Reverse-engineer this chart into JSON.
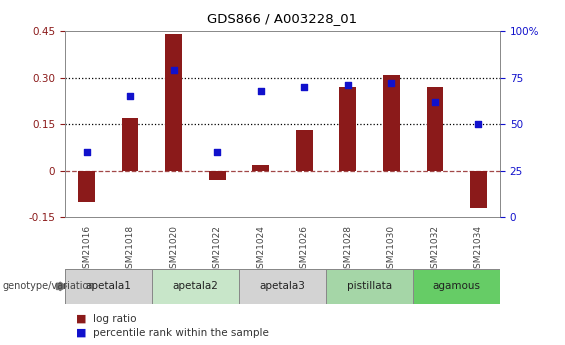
{
  "title": "GDS866 / A003228_01",
  "categories": [
    "GSM21016",
    "GSM21018",
    "GSM21020",
    "GSM21022",
    "GSM21024",
    "GSM21026",
    "GSM21028",
    "GSM21030",
    "GSM21032",
    "GSM21034"
  ],
  "log_ratio": [
    -0.1,
    0.17,
    0.44,
    -0.03,
    0.02,
    0.13,
    0.27,
    0.31,
    0.27,
    -0.12
  ],
  "percentile_rank": [
    35,
    65,
    79,
    35,
    68,
    70,
    71,
    72,
    62,
    50
  ],
  "bar_color": "#8B1A1A",
  "dot_color": "#1111CC",
  "ylim_left": [
    -0.15,
    0.45
  ],
  "ylim_right": [
    0,
    100
  ],
  "yticks_left": [
    -0.15,
    0.0,
    0.15,
    0.3,
    0.45
  ],
  "yticks_right": [
    0,
    25,
    50,
    75,
    100
  ],
  "hline_dotted": [
    0.15,
    0.3
  ],
  "hline_zero": 0.0,
  "genotype_groups": [
    {
      "label": "apetala1",
      "indices": [
        0,
        1
      ],
      "color": "#d3d3d3"
    },
    {
      "label": "apetala2",
      "indices": [
        2,
        3
      ],
      "color": "#c8e6c9"
    },
    {
      "label": "apetala3",
      "indices": [
        4,
        5
      ],
      "color": "#d3d3d3"
    },
    {
      "label": "pistillata",
      "indices": [
        6,
        7
      ],
      "color": "#a5d6a7"
    },
    {
      "label": "agamous",
      "indices": [
        8,
        9
      ],
      "color": "#66cc66"
    }
  ],
  "legend_bar_label": "log ratio",
  "legend_dot_label": "percentile rank within the sample",
  "genotype_label": "genotype/variation"
}
